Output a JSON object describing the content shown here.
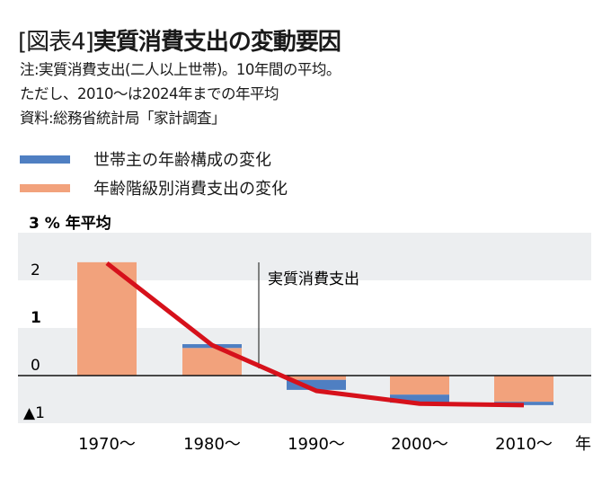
{
  "header": {
    "title_prefix": "[図表4]",
    "title": "実質消費支出の変動要因",
    "notes": [
      "注:実質消費支出(二人以上世帯)。10年間の平均。",
      "ただし、2010〜は2024年までの年平均",
      "資料:総務省統計局「家計調査」"
    ]
  },
  "colors": {
    "blue": "#4f7fc2",
    "orange": "#f2a27c",
    "red": "#d6111b",
    "band": "#eceef0"
  },
  "chart_data": {
    "type": "bar",
    "stacked": true,
    "title": "実質消費支出の変動要因",
    "ylabel": "3 % 年平均",
    "xlabel": "年",
    "ylim": [
      -1,
      3
    ],
    "yticks": [
      {
        "v": 2,
        "label": "2"
      },
      {
        "v": 1,
        "label": "1"
      },
      {
        "v": 0,
        "label": "0"
      },
      {
        "v": -1,
        "label": "▲1"
      }
    ],
    "categories": [
      "1970〜",
      "1980〜",
      "1990〜",
      "2000〜",
      "2010〜"
    ],
    "series": [
      {
        "name": "年齢階級別消費支出の変化",
        "color": "orange",
        "values": [
          2.38,
          0.58,
          -0.09,
          -0.4,
          -0.55
        ]
      },
      {
        "name": "世帯主の年齢構成の変化",
        "color": "blue",
        "values": [
          0.0,
          0.08,
          -0.21,
          -0.17,
          -0.07
        ]
      }
    ],
    "line": {
      "name": "実質消費支出",
      "color": "red",
      "values": [
        2.36,
        0.64,
        -0.32,
        -0.59,
        -0.62
      ]
    },
    "annotation": "実質消費支出",
    "legend": [
      "世帯主の年齢構成の変化",
      "年齢階級別消費支出の変化"
    ],
    "legend_position": "top-left",
    "grid": "alternating bands"
  }
}
